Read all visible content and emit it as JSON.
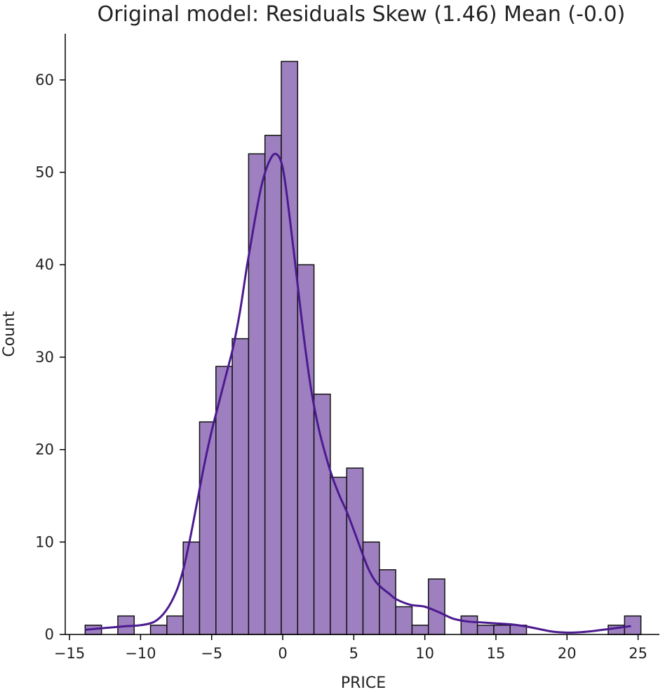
{
  "chart_data": {
    "type": "bar",
    "title": "Original model: Residuals Skew (1.46) Mean (-0.0)",
    "xlabel": "PRICE",
    "ylabel": "Count",
    "xlim": [
      -15.3,
      26.5
    ],
    "ylim": [
      0,
      65
    ],
    "xticks": [
      "−15",
      "−10",
      "−5",
      "0",
      "5",
      "10",
      "15",
      "20",
      "25"
    ],
    "yticks": [
      "0",
      "10",
      "20",
      "30",
      "40",
      "50",
      "60"
    ],
    "bins": [
      {
        "x0": -13.9,
        "x1": -12.75,
        "count": 1
      },
      {
        "x0": -12.75,
        "x1": -11.6,
        "count": 0
      },
      {
        "x0": -11.6,
        "x1": -10.45,
        "count": 2
      },
      {
        "x0": -10.45,
        "x1": -9.3,
        "count": 0
      },
      {
        "x0": -9.3,
        "x1": -8.15,
        "count": 1
      },
      {
        "x0": -8.15,
        "x1": -7.0,
        "count": 2
      },
      {
        "x0": -7.0,
        "x1": -5.85,
        "count": 10
      },
      {
        "x0": -5.85,
        "x1": -4.7,
        "count": 23
      },
      {
        "x0": -4.7,
        "x1": -3.55,
        "count": 29
      },
      {
        "x0": -3.55,
        "x1": -2.4,
        "count": 32
      },
      {
        "x0": -2.4,
        "x1": -1.25,
        "count": 52
      },
      {
        "x0": -1.25,
        "x1": -0.1,
        "count": 54
      },
      {
        "x0": -0.1,
        "x1": 1.05,
        "count": 62
      },
      {
        "x0": 1.05,
        "x1": 2.2,
        "count": 40
      },
      {
        "x0": 2.2,
        "x1": 3.35,
        "count": 26
      },
      {
        "x0": 3.35,
        "x1": 4.5,
        "count": 17
      },
      {
        "x0": 4.5,
        "x1": 5.65,
        "count": 18
      },
      {
        "x0": 5.65,
        "x1": 6.8,
        "count": 10
      },
      {
        "x0": 6.8,
        "x1": 7.95,
        "count": 7
      },
      {
        "x0": 7.95,
        "x1": 9.1,
        "count": 3
      },
      {
        "x0": 9.1,
        "x1": 10.25,
        "count": 1
      },
      {
        "x0": 10.25,
        "x1": 11.4,
        "count": 6
      },
      {
        "x0": 11.4,
        "x1": 12.55,
        "count": 0
      },
      {
        "x0": 12.55,
        "x1": 13.7,
        "count": 2
      },
      {
        "x0": 13.7,
        "x1": 14.85,
        "count": 1
      },
      {
        "x0": 14.85,
        "x1": 16.0,
        "count": 1
      },
      {
        "x0": 16.0,
        "x1": 17.15,
        "count": 1
      },
      {
        "x0": 17.15,
        "x1": 18.3,
        "count": 0
      },
      {
        "x0": 18.3,
        "x1": 19.45,
        "count": 0
      },
      {
        "x0": 19.45,
        "x1": 20.6,
        "count": 0
      },
      {
        "x0": 20.6,
        "x1": 21.75,
        "count": 0
      },
      {
        "x0": 21.75,
        "x1": 22.9,
        "count": 0
      },
      {
        "x0": 22.9,
        "x1": 24.05,
        "count": 1
      },
      {
        "x0": 24.05,
        "x1": 25.2,
        "count": 2
      }
    ],
    "kde": {
      "x": [
        -13.9,
        -12.5,
        -11,
        -10,
        -9,
        -8.2,
        -7.5,
        -7,
        -6.5,
        -6,
        -5.5,
        -5,
        -4.5,
        -4,
        -3.5,
        -3,
        -2.5,
        -2,
        -1.5,
        -1,
        -0.5,
        0,
        0.5,
        1,
        1.5,
        2,
        2.5,
        3,
        3.5,
        4,
        4.5,
        5,
        5.5,
        6,
        6.5,
        7,
        7.5,
        8,
        9,
        10,
        11,
        12,
        13,
        14,
        15,
        16,
        17,
        18,
        19,
        20,
        21,
        22,
        23,
        24.5
      ],
      "y": [
        0.5,
        0.7,
        0.9,
        1.0,
        1.4,
        2.6,
        4.6,
        7,
        10.5,
        14.5,
        18.5,
        22,
        25,
        28,
        31,
        35,
        40,
        44.5,
        48.5,
        51,
        52,
        50.5,
        45,
        38.5,
        32,
        26.5,
        22.5,
        19.5,
        17,
        15,
        13.3,
        11.3,
        9.2,
        7.2,
        5.8,
        5.0,
        4.4,
        3.8,
        3.2,
        3.0,
        2.4,
        1.7,
        1.4,
        1.3,
        1.2,
        1.1,
        0.9,
        0.6,
        0.3,
        0.2,
        0.25,
        0.4,
        0.6,
        0.9
      ]
    },
    "colors": {
      "bar_fill": "#9e80c0",
      "bar_edge": "#111111",
      "kde_line": "#4b1a8f"
    },
    "grid": false,
    "legend": "none"
  }
}
